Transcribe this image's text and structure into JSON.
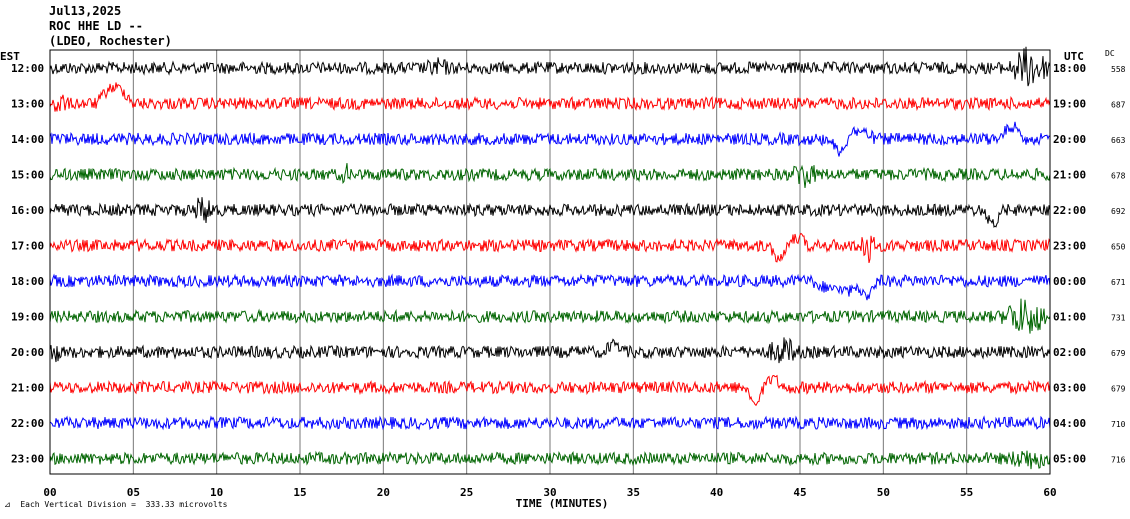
{
  "header": {
    "date": "Jul13,2025",
    "station": "ROC HHE LD --",
    "network": "(LDEO, Rochester)"
  },
  "left_tz": "EST",
  "right_tz": "UTC",
  "dc_label": "DC",
  "footer": "Each Vertical Division =  333.33 microvolts",
  "chart_data": {
    "type": "line",
    "xlabel": "TIME (MINUTES)",
    "x_ticks": [
      "00",
      "05",
      "10",
      "15",
      "20",
      "25",
      "30",
      "35",
      "40",
      "45",
      "50",
      "55",
      "60"
    ],
    "xlim": [
      0,
      60
    ],
    "grid": true,
    "trace_colors": [
      "#000000",
      "#ff0000",
      "#0000ff",
      "#006400"
    ],
    "rows": [
      {
        "left": "12:00",
        "right": "18:00",
        "dc": "558"
      },
      {
        "left": "13:00",
        "right": "19:00",
        "dc": "687"
      },
      {
        "left": "14:00",
        "right": "20:00",
        "dc": "663"
      },
      {
        "left": "15:00",
        "right": "21:00",
        "dc": "678"
      },
      {
        "left": "16:00",
        "right": "22:00",
        "dc": "692"
      },
      {
        "left": "17:00",
        "right": "23:00",
        "dc": "650"
      },
      {
        "left": "18:00",
        "right": "00:00",
        "dc": "671"
      },
      {
        "left": "19:00",
        "right": "01:00",
        "dc": "731"
      },
      {
        "left": "20:00",
        "right": "02:00",
        "dc": "679"
      },
      {
        "left": "21:00",
        "right": "03:00",
        "dc": "679"
      },
      {
        "left": "22:00",
        "right": "04:00",
        "dc": "710"
      },
      {
        "left": "23:00",
        "right": "05:00",
        "dc": "716"
      }
    ]
  }
}
